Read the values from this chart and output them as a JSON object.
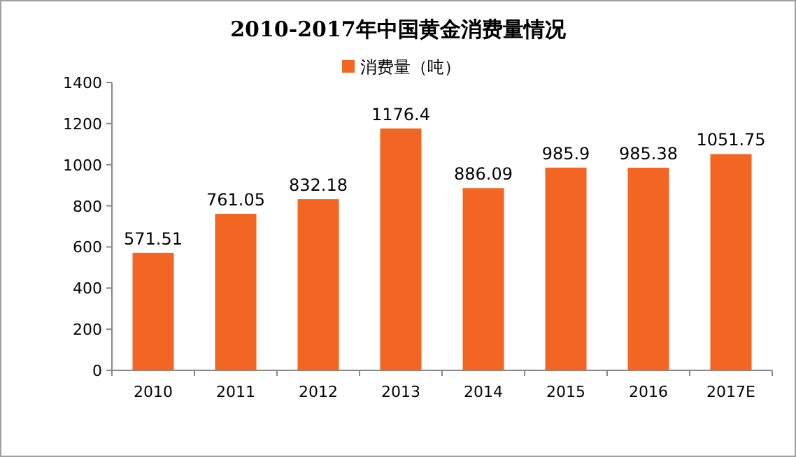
{
  "chart_data": {
    "type": "bar",
    "title": "2010-2017年中国黄金消费量情况",
    "categories": [
      "2010",
      "2011",
      "2012",
      "2013",
      "2014",
      "2015",
      "2016",
      "2017E"
    ],
    "series": [
      {
        "name": "消费量（吨）",
        "color": "#f26522",
        "values": [
          571.51,
          761.05,
          832.18,
          1176.4,
          886.09,
          985.9,
          985.38,
          1051.75
        ]
      }
    ],
    "ylim": [
      0,
      1400
    ],
    "yticks": [
      0,
      200,
      400,
      600,
      800,
      1000,
      1200,
      1400
    ],
    "data_labels": true,
    "legend": "top"
  }
}
